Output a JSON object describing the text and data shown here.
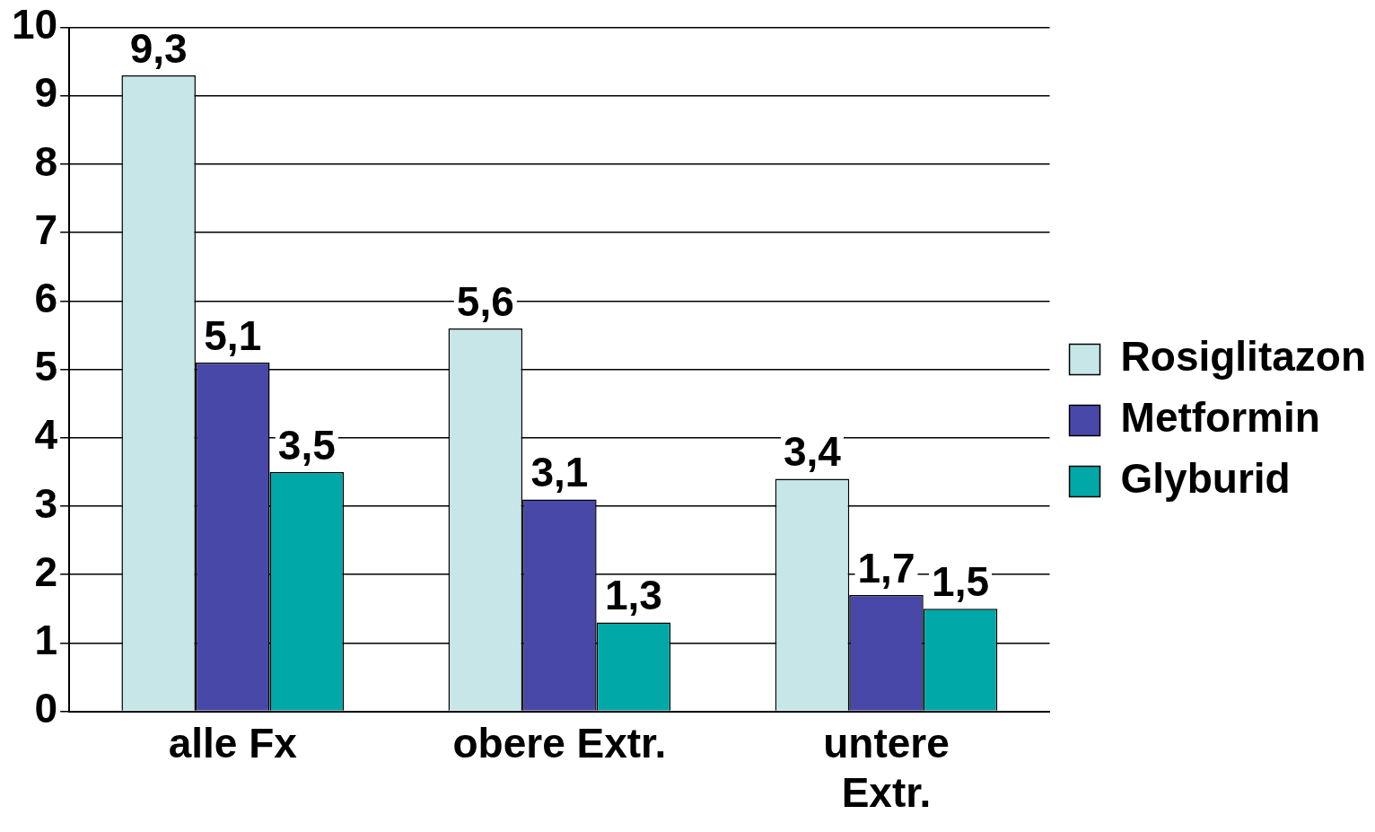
{
  "chart_data": {
    "type": "bar",
    "categories": [
      "alle Fx",
      "obere Extr.",
      "untere Extr."
    ],
    "series": [
      {
        "name": "Rosiglitazon",
        "color": "#c6e6e8",
        "values": [
          9.3,
          5.6,
          3.4
        ],
        "value_labels": [
          "9,3",
          "5,6",
          "3,4"
        ]
      },
      {
        "name": "Metformin",
        "color": "#4848a8",
        "values": [
          5.1,
          3.1,
          1.7
        ],
        "value_labels": [
          "5,1",
          "3,1",
          "1,7"
        ]
      },
      {
        "name": "Glyburid",
        "color": "#00a8a8",
        "values": [
          3.5,
          1.3,
          1.5
        ],
        "value_labels": [
          "3,5",
          "1,3",
          "1,5"
        ]
      }
    ],
    "ylim": [
      0,
      10
    ],
    "yticks": [
      0,
      1,
      2,
      3,
      4,
      5,
      6,
      7,
      8,
      9,
      10
    ],
    "grid": "y",
    "legend": "right"
  }
}
